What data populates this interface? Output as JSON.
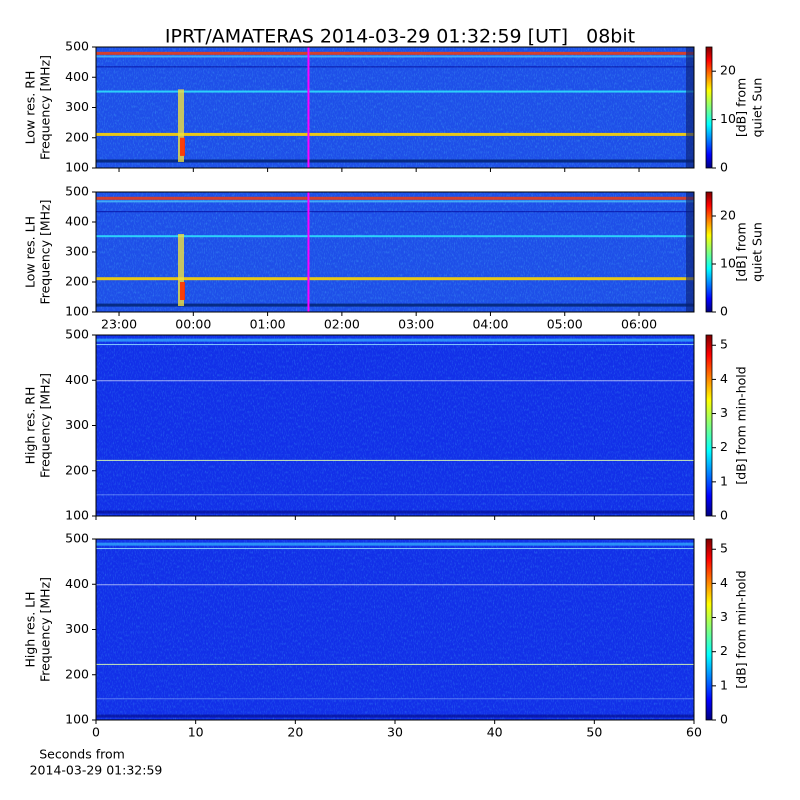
{
  "title": "IPRT/AMATERAS 2014-03-29 01:32:59 [UT]   08bit",
  "chart_data": [
    {
      "type": "spectrogram",
      "ylabel": [
        "Low res. RH",
        "Frequency [MHz]"
      ],
      "ylim": [
        100,
        500
      ],
      "yticks": [
        100,
        200,
        300,
        400,
        500
      ],
      "xlim": [
        22.69,
        30.74
      ],
      "xticks": [
        23,
        24,
        25,
        26,
        27,
        28,
        29,
        30
      ],
      "xticklabels": false,
      "marker_x": 25.55,
      "marker_color": "#ff00ff",
      "clim": [
        0,
        25
      ],
      "cticks": [
        0,
        10,
        20
      ],
      "clabel": [
        "[dB] from",
        "quiet Sun"
      ]
    },
    {
      "type": "spectrogram",
      "ylabel": [
        "Low res. LH",
        "Frequency [MHz]"
      ],
      "ylim": [
        100,
        500
      ],
      "yticks": [
        100,
        200,
        300,
        400,
        500
      ],
      "xlim": [
        22.69,
        30.74
      ],
      "xticks": [
        {
          "value": 23,
          "label": "23:00"
        },
        {
          "value": 24,
          "label": "00:00"
        },
        {
          "value": 25,
          "label": "01:00"
        },
        {
          "value": 26,
          "label": "02:00"
        },
        {
          "value": 27,
          "label": "03:00"
        },
        {
          "value": 28,
          "label": "04:00"
        },
        {
          "value": 29,
          "label": "05:00"
        },
        {
          "value": 30,
          "label": "06:00"
        }
      ],
      "xticklabels": true,
      "marker_x": 25.55,
      "marker_color": "#ff00ff",
      "clim": [
        0,
        25
      ],
      "cticks": [
        0,
        10,
        20
      ],
      "clabel": [
        "[dB] from",
        "quiet Sun"
      ]
    },
    {
      "type": "spectrogram",
      "ylabel": [
        "High res. RH",
        "Frequency [MHz]"
      ],
      "ylim": [
        100,
        500
      ],
      "yticks": [
        100,
        200,
        300,
        400,
        500
      ],
      "xlim": [
        0,
        60
      ],
      "xticks": [
        0,
        10,
        20,
        30,
        40,
        50,
        60
      ],
      "xticklabels": false,
      "clim": [
        0,
        5.3
      ],
      "cticks": [
        0,
        1,
        2,
        3,
        4,
        5
      ],
      "clabel": [
        "[dB] from min-hold"
      ]
    },
    {
      "type": "spectrogram",
      "ylabel": [
        "High res. LH",
        "Frequency [MHz]"
      ],
      "ylim": [
        100,
        500
      ],
      "yticks": [
        100,
        200,
        300,
        400,
        500
      ],
      "xlim": [
        0,
        60
      ],
      "xticks": [
        0,
        10,
        20,
        30,
        40,
        50,
        60
      ],
      "xticklabels": true,
      "xlabel": [
        "Seconds from",
        "2014-03-29 01:32:59"
      ],
      "clim": [
        0,
        5.3
      ],
      "cticks": [
        0,
        1,
        2,
        3,
        4,
        5
      ],
      "clabel": [
        "[dB] from min-hold"
      ]
    }
  ]
}
